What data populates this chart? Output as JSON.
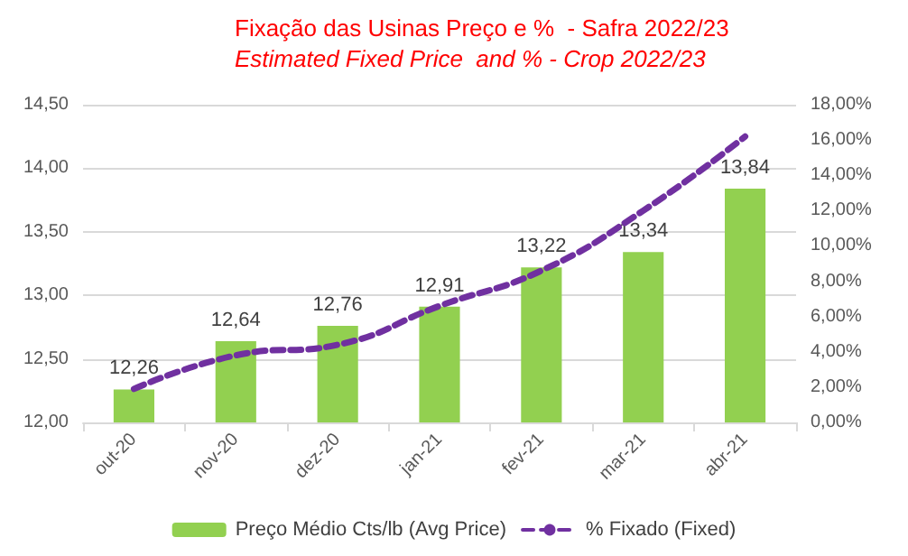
{
  "chart_data": {
    "type": "bar",
    "title": "Fixação das Usinas Preço e %  - Safra 2022/23",
    "subtitle": "Estimated Fixed Price  and % - Crop 2022/23",
    "categories": [
      "out-20",
      "nov-20",
      "dez-20",
      "jan-21",
      "fev-21",
      "mar-21",
      "abr-21"
    ],
    "series": [
      {
        "name": "Preço Médio Cts/lb (Avg Price)",
        "color": "#92d050",
        "values": [
          12.26,
          12.64,
          12.76,
          12.91,
          13.22,
          13.34,
          13.84
        ],
        "value_labels": [
          "12,26",
          "12,64",
          "12,76",
          "12,91",
          "13,22",
          "13,34",
          "13,84"
        ]
      },
      {
        "name": "% Fixado (Fixed)",
        "type": "line",
        "axis": "y2",
        "color": "#7030a0",
        "line_style": "dashed",
        "marker": "none",
        "values": [
          1.9,
          3.8,
          4.4,
          6.6,
          8.6,
          12.0,
          16.2
        ]
      }
    ],
    "ylim": [
      12,
      14.5
    ],
    "yticks": [
      {
        "value": 12,
        "label": "12,00"
      },
      {
        "value": 12.5,
        "label": "12,50"
      },
      {
        "value": 13,
        "label": "13,00"
      },
      {
        "value": 13.5,
        "label": "13,50"
      },
      {
        "value": 14,
        "label": "14,00"
      },
      {
        "value": 14.5,
        "label": "14,50"
      }
    ],
    "y2lim": [
      0,
      18
    ],
    "y2ticks": [
      {
        "value": 0,
        "label": "0,00%"
      },
      {
        "value": 2,
        "label": "2,00%"
      },
      {
        "value": 4,
        "label": "4,00%"
      },
      {
        "value": 6,
        "label": "6,00%"
      },
      {
        "value": 8,
        "label": "8,00%"
      },
      {
        "value": 10,
        "label": "10,00%"
      },
      {
        "value": 12,
        "label": "12,00%"
      },
      {
        "value": 14,
        "label": "14,00%"
      },
      {
        "value": 16,
        "label": "16,00%"
      },
      {
        "value": 18,
        "label": "18,00%"
      }
    ],
    "grid": "y",
    "legend": "bottom"
  }
}
